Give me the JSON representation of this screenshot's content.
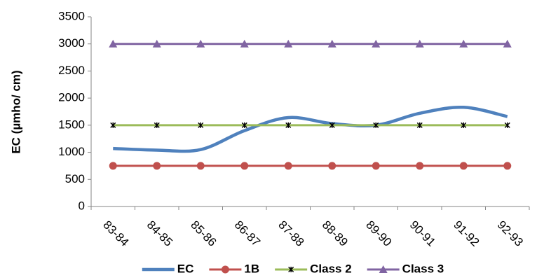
{
  "chart_data": {
    "type": "line",
    "y_label": "EC (µmho/ cm)",
    "categories": [
      "83-84",
      "84-85",
      "85-86",
      "86-87",
      "87-88",
      "88-89",
      "89-90",
      "90-91",
      "91-92",
      "92-93"
    ],
    "series": [
      {
        "name": "EC",
        "color": "#4f81bd",
        "marker": "none",
        "smooth": true,
        "values": [
          1070,
          1040,
          1050,
          1400,
          1640,
          1530,
          1500,
          1720,
          1830,
          1660
        ]
      },
      {
        "name": "1B",
        "color": "#c0504d",
        "marker": "circle",
        "values": [
          750,
          750,
          750,
          750,
          750,
          750,
          750,
          750,
          750,
          750
        ]
      },
      {
        "name": "Class 2",
        "color": "#9bbb59",
        "marker": "star",
        "values": [
          1500,
          1500,
          1500,
          1500,
          1500,
          1500,
          1500,
          1500,
          1500,
          1500
        ]
      },
      {
        "name": "Class 3",
        "color": "#8064a2",
        "marker": "triangle",
        "values": [
          3000,
          3000,
          3000,
          3000,
          3000,
          3000,
          3000,
          3000,
          3000,
          3000
        ]
      }
    ],
    "ylim": [
      0,
      3500
    ],
    "yticks": [
      0,
      500,
      1000,
      1500,
      2000,
      2500,
      3000,
      3500
    ],
    "legend": "bottom"
  }
}
